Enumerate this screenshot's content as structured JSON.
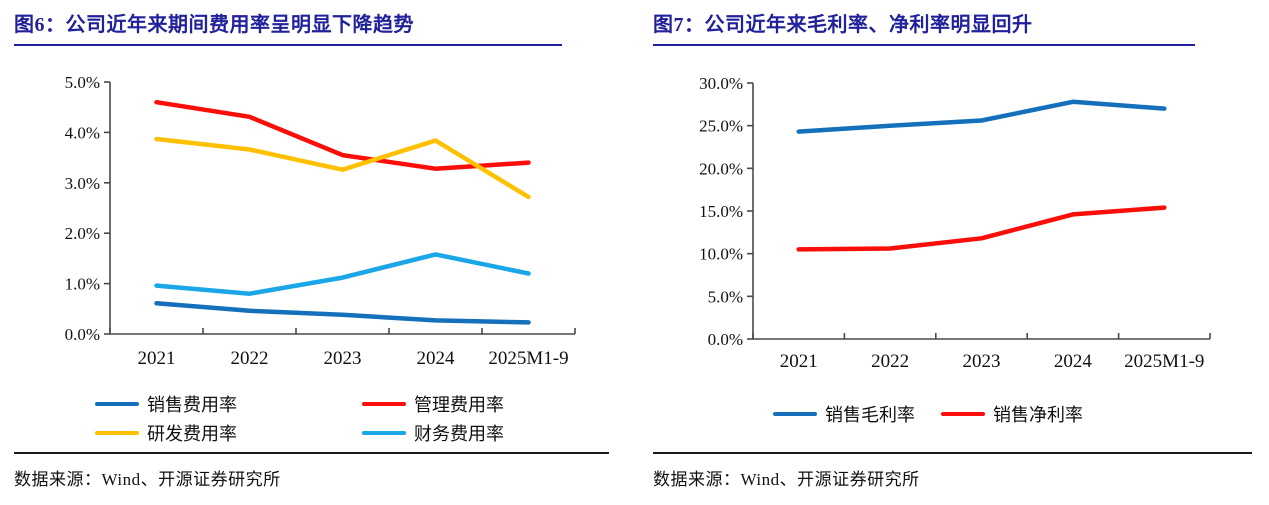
{
  "page": {
    "background": "#ffffff"
  },
  "figures": [
    {
      "title": "图6：公司近年来期间费用率呈明显下降趋势",
      "source": "数据来源：Wind、开源证券研究所"
    },
    {
      "title": "图7：公司近年来毛利率、净利率明显回升",
      "source": "数据来源：Wind、开源证券研究所"
    }
  ],
  "colors": {
    "title_navy": "#21219B",
    "axis": "#4a4a4a",
    "blue": "#1570BB",
    "red": "#FB0D09",
    "yellow": "#FFC000",
    "light_blue": "#1BA6E8"
  },
  "chart_data": [
    {
      "type": "line",
      "title": "图6：公司近年来期间费用率呈明显下降趋势",
      "categories": [
        "2021",
        "2022",
        "2023",
        "2024",
        "2025M1-9"
      ],
      "y_ticks": [
        "0.0%",
        "1.0%",
        "2.0%",
        "3.0%",
        "4.0%",
        "5.0%"
      ],
      "ylim": [
        0,
        5
      ],
      "xlabel": "",
      "ylabel": "",
      "grid": false,
      "legend_position": "bottom",
      "series": [
        {
          "name": "销售费用率",
          "color": "#1570BB",
          "values": [
            0.61,
            0.46,
            0.38,
            0.27,
            0.23
          ]
        },
        {
          "name": "管理费用率",
          "color": "#FB0D09",
          "values": [
            4.6,
            4.31,
            3.55,
            3.28,
            3.4
          ]
        },
        {
          "name": "研发费用率",
          "color": "#FFC000",
          "values": [
            3.87,
            3.66,
            3.26,
            3.84,
            2.72
          ]
        },
        {
          "name": "财务费用率",
          "color": "#1BA6E8",
          "values": [
            0.96,
            0.8,
            1.12,
            1.58,
            1.2
          ]
        }
      ]
    },
    {
      "type": "line",
      "title": "图7：公司近年来毛利率、净利率明显回升",
      "categories": [
        "2021",
        "2022",
        "2023",
        "2024",
        "2025M1-9"
      ],
      "y_ticks": [
        "0.0%",
        "5.0%",
        "10.0%",
        "15.0%",
        "20.0%",
        "25.0%",
        "30.0%"
      ],
      "ylim": [
        0,
        30
      ],
      "xlabel": "",
      "ylabel": "",
      "grid": false,
      "legend_position": "bottom",
      "series": [
        {
          "name": "销售毛利率",
          "color": "#1570BB",
          "values": [
            24.3,
            25.0,
            25.6,
            27.8,
            27.0
          ]
        },
        {
          "name": "销售净利率",
          "color": "#FB0D09",
          "values": [
            10.5,
            10.6,
            11.8,
            14.6,
            15.4
          ]
        }
      ]
    }
  ]
}
